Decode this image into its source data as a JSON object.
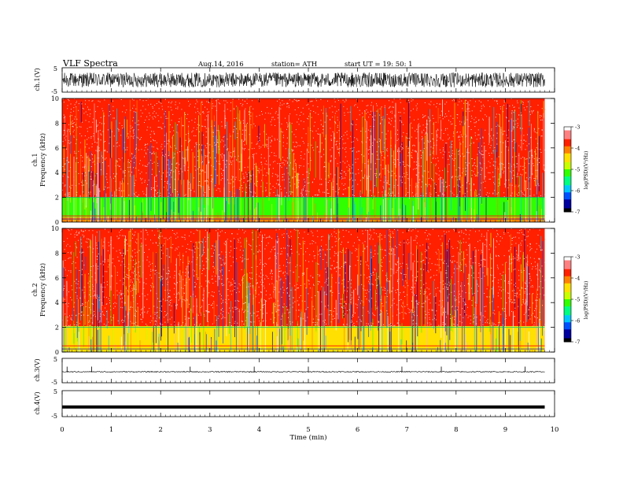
{
  "header": {
    "title": "VLF  Spectra",
    "date": "Aug.14, 2016",
    "station": "station= ATH",
    "start": "start  UT =   19: 50: 1"
  },
  "chart_data": [
    {
      "id": "ch1-waveform",
      "type": "line",
      "ylabel": "ch.1(V)",
      "ylim": [
        -5,
        5
      ],
      "y_ticks": [
        "5",
        "-5"
      ],
      "description_values": {
        "amplitude_range": [
          -3,
          3
        ]
      },
      "xlim": [
        0,
        10
      ]
    },
    {
      "id": "ch1-spectrogram",
      "type": "heatmap",
      "ylabel": "Frequency  (kHz)",
      "ylabel_channel": "ch.1",
      "ylim": [
        0,
        10
      ],
      "y_ticks": [
        "0",
        "2",
        "4",
        "6",
        "8",
        "10"
      ],
      "xlim": [
        0,
        10
      ],
      "data_xmax": 9.8,
      "bands": [
        {
          "from": 0,
          "to": 0.4,
          "level": -4.2
        },
        {
          "from": 0.4,
          "to": 2.0,
          "level": -5.3
        },
        {
          "from": 2.0,
          "to": 10,
          "level": -3.7
        }
      ],
      "colorbar": {
        "label": "log(PSD)(V²/Hz)",
        "ticks": [
          "-3",
          "-4",
          "-5",
          "-6",
          "-7"
        ],
        "range": [
          -7,
          -3
        ]
      }
    },
    {
      "id": "ch2-spectrogram",
      "type": "heatmap",
      "ylabel": "Frequency  (kHz)",
      "ylabel_channel": "ch.2",
      "ylim": [
        0,
        10
      ],
      "y_ticks": [
        "0",
        "2",
        "4",
        "6",
        "8",
        "10"
      ],
      "xlim": [
        0,
        10
      ],
      "data_xmax": 9.8,
      "bands": [
        {
          "from": 0,
          "to": 2.1,
          "level": -4.4
        },
        {
          "from": 2.1,
          "to": 10,
          "level": -3.7
        }
      ],
      "colorbar": {
        "label": "log(PSD)(V²/Hz)",
        "ticks": [
          "-3",
          "-4",
          "-5",
          "-6",
          "-7"
        ],
        "range": [
          -7,
          -3
        ]
      }
    },
    {
      "id": "ch3-waveform",
      "type": "line",
      "ylabel": "ch.3(V)",
      "ylim": [
        -5,
        5
      ],
      "y_ticks": [
        "5",
        "-5"
      ],
      "xlim": [
        0,
        10
      ],
      "spikes_min": [
        0.1,
        0.6,
        2.6,
        3.9,
        5.0,
        6.9,
        7.7,
        9.4
      ]
    },
    {
      "id": "ch4-waveform",
      "type": "line",
      "ylabel": "ch.4(V)",
      "ylim": [
        -5,
        5
      ],
      "y_ticks": [
        "5",
        "-5"
      ],
      "xlim": [
        0,
        10
      ],
      "constant_value": -1.3
    }
  ],
  "xaxis": {
    "label": "Time  (min)",
    "ticks": [
      "0",
      "1",
      "2",
      "3",
      "4",
      "5",
      "6",
      "7",
      "8",
      "9",
      "10"
    ],
    "range": [
      0,
      10
    ]
  },
  "colormap": [
    "#000000",
    "#0000a0",
    "#0050ff",
    "#00c8ff",
    "#00ff80",
    "#30ff00",
    "#c8ff00",
    "#ffe000",
    "#ff8000",
    "#ff2000",
    "#ff8080",
    "#ffffff"
  ]
}
